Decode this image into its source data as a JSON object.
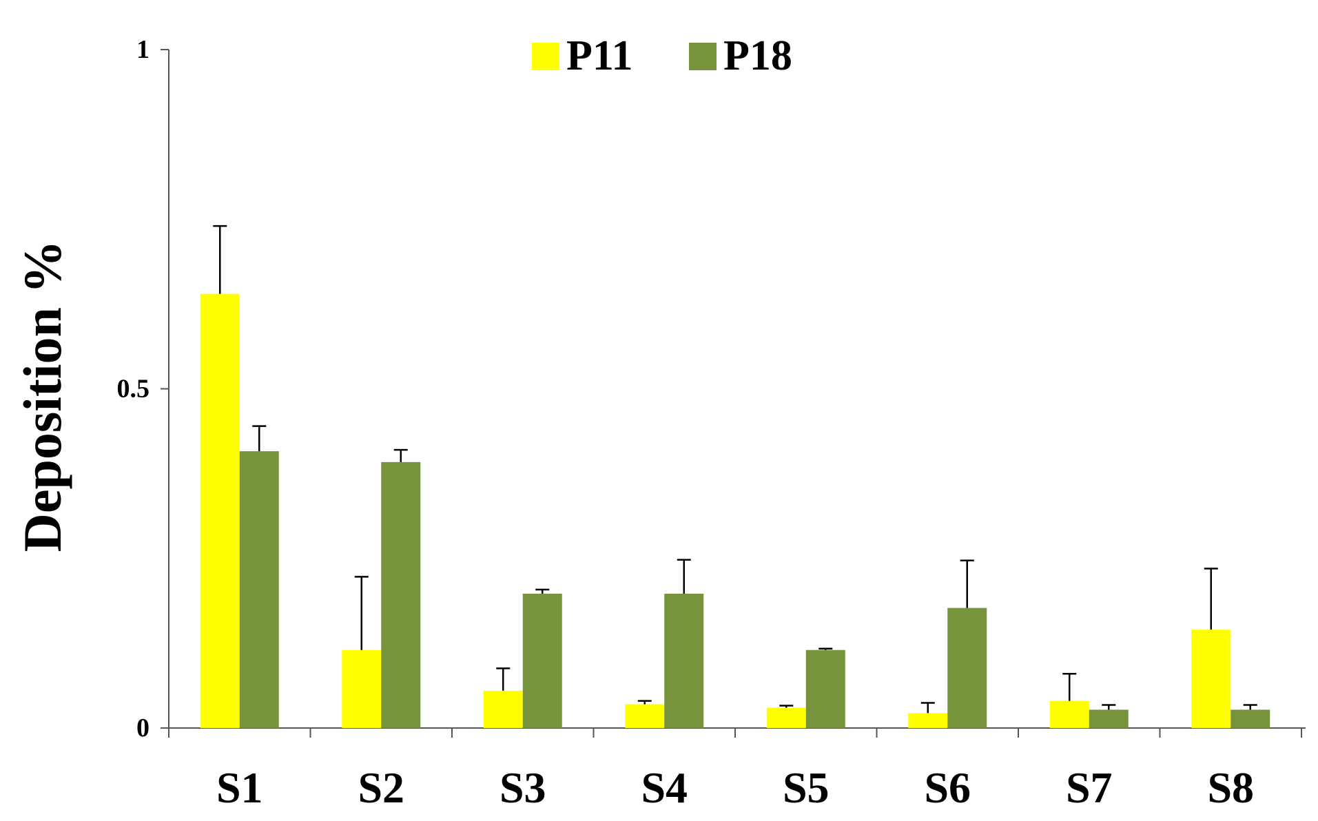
{
  "chart_data": {
    "type": "bar",
    "title": "",
    "xlabel": "",
    "ylabel": "Deposition %",
    "ylim": [
      0,
      1
    ],
    "yticks": [
      "0",
      "0.5",
      "1"
    ],
    "grid": false,
    "legend_position": "top-center",
    "categories": [
      "S1",
      "S2",
      "S3",
      "S4",
      "S5",
      "S6",
      "S7",
      "S8"
    ],
    "series": [
      {
        "name": "P11",
        "color": "#ffff00",
        "values": [
          0.64,
          0.115,
          0.055,
          0.035,
          0.03,
          0.022,
          0.04,
          0.145
        ],
        "errors": [
          0.1,
          0.108,
          0.033,
          0.005,
          0.003,
          0.015,
          0.04,
          0.09
        ]
      },
      {
        "name": "P18",
        "color": "#77933c",
        "values": [
          0.408,
          0.392,
          0.198,
          0.198,
          0.115,
          0.177,
          0.027,
          0.027
        ],
        "errors": [
          0.037,
          0.018,
          0.006,
          0.05,
          0.002,
          0.07,
          0.007,
          0.007
        ]
      }
    ]
  }
}
